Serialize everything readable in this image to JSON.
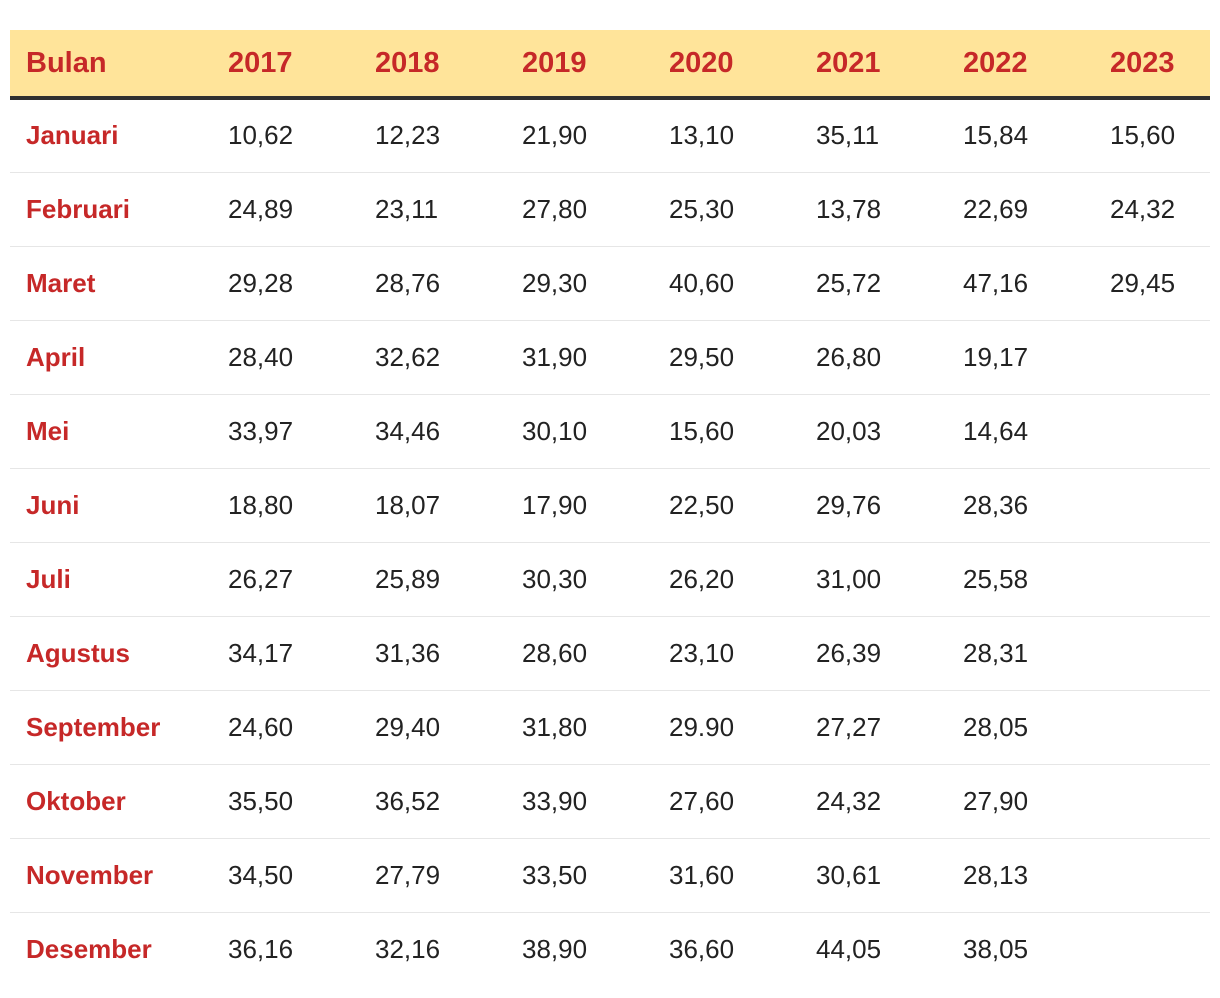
{
  "table": {
    "headers": [
      "Bulan",
      "2017",
      "2018",
      "2019",
      "2020",
      "2021",
      "2022",
      "2023"
    ],
    "rows": [
      {
        "month": "Januari",
        "values": [
          "10,62",
          "12,23",
          "21,90",
          "13,10",
          "35,11",
          "15,84",
          "15,60"
        ]
      },
      {
        "month": "Februari",
        "values": [
          "24,89",
          "23,11",
          "27,80",
          "25,30",
          "13,78",
          "22,69",
          "24,32"
        ]
      },
      {
        "month": "Maret",
        "values": [
          "29,28",
          "28,76",
          "29,30",
          "40,60",
          "25,72",
          "47,16",
          "29,45"
        ]
      },
      {
        "month": "April",
        "values": [
          "28,40",
          "32,62",
          "31,90",
          "29,50",
          "26,80",
          "19,17",
          ""
        ]
      },
      {
        "month": "Mei",
        "values": [
          "33,97",
          "34,46",
          "30,10",
          "15,60",
          "20,03",
          "14,64",
          ""
        ]
      },
      {
        "month": "Juni",
        "values": [
          "18,80",
          "18,07",
          "17,90",
          "22,50",
          "29,76",
          "28,36",
          ""
        ]
      },
      {
        "month": "Juli",
        "values": [
          "26,27",
          "25,89",
          "30,30",
          "26,20",
          "31,00",
          "25,58",
          ""
        ]
      },
      {
        "month": "Agustus",
        "values": [
          "34,17",
          "31,36",
          "28,60",
          "23,10",
          "26,39",
          "28,31",
          ""
        ]
      },
      {
        "month": "September",
        "values": [
          "24,60",
          "29,40",
          "31,80",
          "29.90",
          "27,27",
          "28,05",
          ""
        ]
      },
      {
        "month": "Oktober",
        "values": [
          "35,50",
          "36,52",
          "33,90",
          "27,60",
          "24,32",
          "27,90",
          ""
        ]
      },
      {
        "month": "November",
        "values": [
          "34,50",
          "27,79",
          "33,50",
          "31,60",
          "30,61",
          "28,13",
          ""
        ]
      },
      {
        "month": "Desember",
        "values": [
          "36,16",
          "32,16",
          "38,90",
          "36,60",
          "44,05",
          "38,05",
          ""
        ]
      }
    ]
  },
  "colors": {
    "header_bg": "#ffe49a",
    "accent_red": "#c62828",
    "text": "#222222",
    "row_divider": "#e6e6e6",
    "header_rule": "#2f2f2f"
  }
}
